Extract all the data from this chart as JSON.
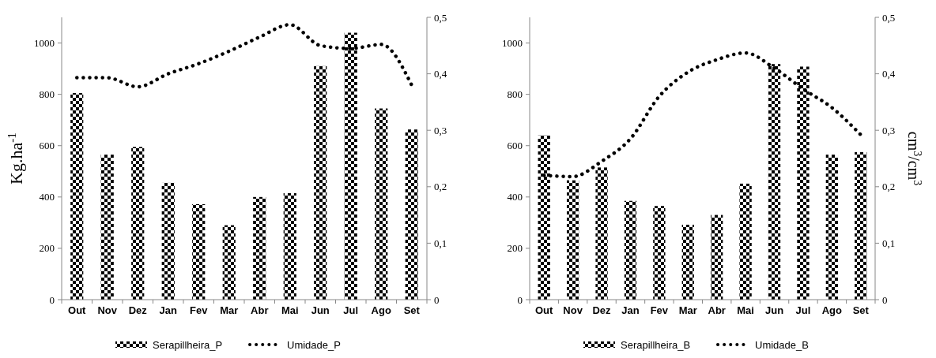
{
  "chart_data": [
    {
      "type": "bar",
      "ylabel": "Kg.ha$^{-1}$",
      "categories": [
        "Out",
        "Nov",
        "Dez",
        "Jan",
        "Fev",
        "Mar",
        "Abr",
        "Mai",
        "Jun",
        "Jul",
        "Ago",
        "Set"
      ],
      "series": [
        {
          "name": "Serapillheira_P",
          "color": "#000000",
          "values": [
            805,
            565,
            595,
            455,
            372,
            290,
            400,
            415,
            910,
            1040,
            745,
            663
          ]
        },
        {
          "name": "Umidade_P",
          "type": "line",
          "axis": "y2",
          "color": "#000000",
          "line_style": "dotted",
          "values": [
            0.393,
            0.393,
            0.377,
            0.4,
            0.418,
            0.44,
            0.465,
            0.487,
            0.45,
            0.445,
            0.452,
            0.38
          ]
        }
      ],
      "ylim": [
        0,
        1100
      ],
      "yticks": [
        0,
        200,
        400,
        600,
        800,
        1000
      ],
      "y2lim": [
        0,
        0.5
      ],
      "y2ticks": [
        {
          "value": 0,
          "label": "0"
        },
        {
          "value": 0.1,
          "label": "0,1"
        },
        {
          "value": 0.2,
          "label": "0,2"
        },
        {
          "value": 0.3,
          "label": "0,3"
        },
        {
          "value": 0.4,
          "label": "0,4"
        },
        {
          "value": 0.5,
          "label": "0,5"
        }
      ],
      "grid": false,
      "legend": "bottom"
    },
    {
      "type": "bar",
      "y2label": "cm$^{3}$/cm$^{3}$",
      "categories": [
        "Out",
        "Nov",
        "Dez",
        "Jan",
        "Fev",
        "Mar",
        "Abr",
        "Mai",
        "Jun",
        "Jul",
        "Ago",
        "Set"
      ],
      "series": [
        {
          "name": "Serapillheira_B",
          "color": "#000000",
          "values": [
            640,
            465,
            515,
            385,
            365,
            292,
            330,
            452,
            918,
            908,
            565,
            575
          ]
        },
        {
          "name": "Umidade_B",
          "type": "line",
          "axis": "y2",
          "color": "#000000",
          "line_style": "dotted",
          "values": [
            0.22,
            0.218,
            0.245,
            0.285,
            0.36,
            0.403,
            0.425,
            0.437,
            0.41,
            0.373,
            0.34,
            0.292
          ]
        }
      ],
      "ylim": [
        0,
        1100
      ],
      "yticks": [
        0,
        200,
        400,
        600,
        800,
        1000
      ],
      "y2lim": [
        0,
        0.5
      ],
      "y2ticks": [
        {
          "value": 0,
          "label": "0"
        },
        {
          "value": 0.1,
          "label": "0,1"
        },
        {
          "value": 0.2,
          "label": "0,2"
        },
        {
          "value": 0.3,
          "label": "0,3"
        },
        {
          "value": 0.4,
          "label": "0,4"
        },
        {
          "value": 0.5,
          "label": "0,5"
        }
      ],
      "grid": false,
      "legend": "bottom"
    }
  ]
}
